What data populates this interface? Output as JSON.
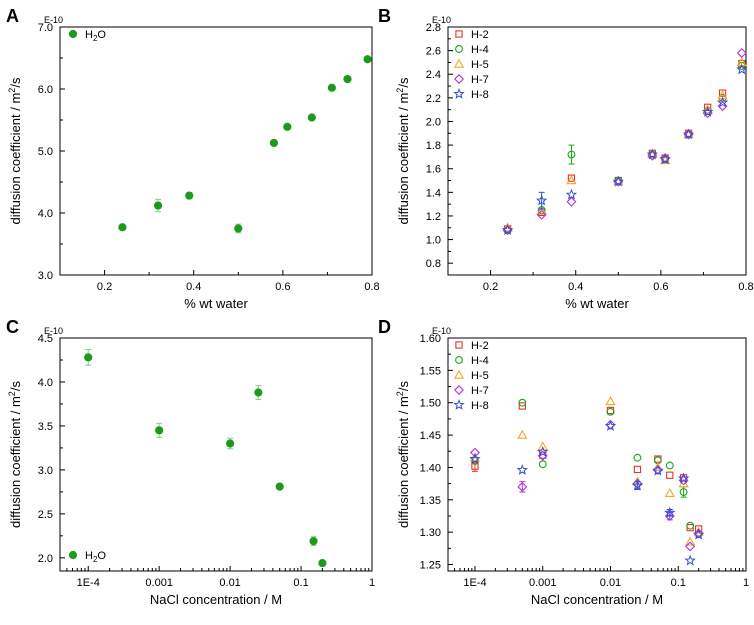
{
  "chart_data": [
    {
      "type": "scatter",
      "panel": "A",
      "xlabel": "% wt water",
      "ylabel": "diffusion coefficient / m²/s",
      "ylabel_main": "diffusion coefficient / m",
      "ylabel_sup": "2",
      "ylabel_tail": "/s",
      "multiplier": "E-10",
      "xscale": "linear",
      "xlim": [
        0.1,
        0.8
      ],
      "ylim": [
        3.0,
        7.0
      ],
      "xticks": [
        0.2,
        0.4,
        0.6,
        0.8
      ],
      "xtick_labels": [
        "0.2",
        "0.4",
        "0.6",
        "0.8"
      ],
      "yticks": [
        3.0,
        4.0,
        5.0,
        6.0,
        7.0
      ],
      "ytick_labels": [
        "3.0",
        "4.0",
        "5.0",
        "6.0",
        "7.0"
      ],
      "legend_position": "top-left",
      "series": [
        {
          "name": "H₂O",
          "name_main": "H",
          "name_sub": "2",
          "name_tail": "O",
          "marker": "filled-circle",
          "color": "#1c9a1c",
          "x": [
            0.24,
            0.32,
            0.39,
            0.5,
            0.58,
            0.61,
            0.665,
            0.71,
            0.745,
            0.79
          ],
          "y": [
            3.77,
            4.12,
            4.28,
            3.75,
            5.13,
            5.39,
            5.54,
            6.02,
            6.16,
            6.48
          ],
          "err": [
            0.03,
            0.1,
            0.05,
            0.07,
            0.03,
            0.03,
            0.03,
            0.03,
            0.03,
            0.04
          ]
        }
      ]
    },
    {
      "type": "scatter",
      "panel": "B",
      "xlabel": "% wt water",
      "ylabel": "diffusion coefficient / m²/s",
      "ylabel_main": "diffusion coefficient / m",
      "ylabel_sup": "2",
      "ylabel_tail": "/s",
      "multiplier": "E-10",
      "xscale": "linear",
      "xlim": [
        0.1,
        0.8
      ],
      "ylim": [
        0.7,
        2.8
      ],
      "xticks": [
        0.2,
        0.4,
        0.6,
        0.8
      ],
      "xtick_labels": [
        "0.2",
        "0.4",
        "0.6",
        "0.8"
      ],
      "yticks": [
        0.8,
        1.0,
        1.2,
        1.4,
        1.6,
        1.8,
        2.0,
        2.2,
        2.4,
        2.6,
        2.8
      ],
      "ytick_labels": [
        "0.8",
        "1.0",
        "1.2",
        "1.4",
        "1.6",
        "1.8",
        "2.0",
        "2.2",
        "2.4",
        "2.6",
        "2.8"
      ],
      "legend_position": "top-left",
      "series": [
        {
          "name": "H-2",
          "marker": "square",
          "color": "#e8312a",
          "x": [
            0.24,
            0.32,
            0.39,
            0.5,
            0.58,
            0.61,
            0.665,
            0.71,
            0.745,
            0.79
          ],
          "y": [
            1.09,
            1.23,
            1.52,
            1.5,
            1.73,
            1.69,
            1.9,
            2.12,
            2.24,
            2.49
          ],
          "err": []
        },
        {
          "name": "H-4",
          "marker": "circle",
          "color": "#1aa81a",
          "x": [
            0.24,
            0.32,
            0.39,
            0.5,
            0.58,
            0.61,
            0.665,
            0.71,
            0.745,
            0.79
          ],
          "y": [
            1.08,
            1.25,
            1.72,
            1.5,
            1.72,
            1.68,
            1.89,
            2.09,
            2.2,
            2.47
          ],
          "err": [
            0,
            0,
            0.08,
            0,
            0,
            0,
            0,
            0,
            0,
            0
          ]
        },
        {
          "name": "H-5",
          "marker": "triangle",
          "color": "#f5a623",
          "x": [
            0.24,
            0.32,
            0.39,
            0.5,
            0.58,
            0.61,
            0.665,
            0.71,
            0.745,
            0.79
          ],
          "y": [
            1.1,
            1.24,
            1.5,
            1.49,
            1.72,
            1.67,
            1.89,
            2.1,
            2.22,
            2.5
          ],
          "err": []
        },
        {
          "name": "H-7",
          "marker": "diamond",
          "color": "#b330e0",
          "x": [
            0.24,
            0.32,
            0.39,
            0.5,
            0.58,
            0.61,
            0.665,
            0.71,
            0.745,
            0.79
          ],
          "y": [
            1.08,
            1.21,
            1.32,
            1.49,
            1.71,
            1.69,
            1.89,
            2.07,
            2.13,
            2.58
          ],
          "err": []
        },
        {
          "name": "H-8",
          "marker": "star",
          "color": "#2f4fd8",
          "x": [
            0.24,
            0.32,
            0.39,
            0.5,
            0.58,
            0.61,
            0.665,
            0.71,
            0.745,
            0.79
          ],
          "y": [
            1.08,
            1.33,
            1.38,
            1.49,
            1.72,
            1.68,
            1.89,
            2.08,
            2.16,
            2.44
          ],
          "err": [
            0,
            0.07,
            0,
            0,
            0,
            0,
            0,
            0,
            0,
            0
          ]
        }
      ]
    },
    {
      "type": "scatter",
      "panel": "C",
      "xlabel": "NaCl concentration / M",
      "ylabel": "diffusion coefficient / m²/s",
      "ylabel_main": "diffusion coefficient / m",
      "ylabel_sup": "2",
      "ylabel_tail": "/s",
      "multiplier": "E-10",
      "xscale": "log",
      "xlim": [
        4e-05,
        1
      ],
      "ylim": [
        1.85,
        4.5
      ],
      "xticks": [
        0.0001,
        0.001,
        0.01,
        0.1,
        1
      ],
      "xtick_labels": [
        "1E-4",
        "0.001",
        "0.01",
        "0.1",
        "1"
      ],
      "yticks": [
        2.0,
        2.5,
        3.0,
        3.5,
        4.0,
        4.5
      ],
      "ytick_labels": [
        "2.0",
        "2.5",
        "3.0",
        "3.5",
        "4.0",
        "4.5"
      ],
      "legend_position": "bottom-left",
      "series": [
        {
          "name": "H₂O",
          "name_main": "H",
          "name_sub": "2",
          "name_tail": "O",
          "marker": "filled-circle",
          "color": "#1c9a1c",
          "x": [
            0.0001,
            0.001,
            0.01,
            0.025,
            0.05,
            0.15,
            0.2
          ],
          "y": [
            4.28,
            3.45,
            3.3,
            3.88,
            2.81,
            2.19,
            1.94
          ],
          "err": [
            0.09,
            0.08,
            0.06,
            0.08,
            0.03,
            0.05,
            0.02
          ]
        }
      ]
    },
    {
      "type": "scatter",
      "panel": "D",
      "xlabel": "NaCl concentration / M",
      "ylabel": "diffusion coefficient / m²/s",
      "ylabel_main": "diffusion coefficient / m",
      "ylabel_sup": "2",
      "ylabel_tail": "/s",
      "multiplier": "E-10",
      "xscale": "log",
      "xlim": [
        4e-05,
        1
      ],
      "ylim": [
        1.24,
        1.6
      ],
      "xticks": [
        0.0001,
        0.001,
        0.01,
        0.1,
        1
      ],
      "xtick_labels": [
        "1E-4",
        "0.001",
        "0.01",
        "0.1",
        "1"
      ],
      "yticks": [
        1.25,
        1.3,
        1.35,
        1.4,
        1.45,
        1.5,
        1.55,
        1.6
      ],
      "ytick_labels": [
        "1.25",
        "1.30",
        "1.35",
        "1.40",
        "1.45",
        "1.50",
        "1.55",
        "1.60"
      ],
      "legend_position": "top-left",
      "series": [
        {
          "name": "H-2",
          "marker": "square",
          "color": "#e8312a",
          "x": [
            0.0001,
            0.0005,
            0.001,
            0.01,
            0.025,
            0.05,
            0.075,
            0.12,
            0.15,
            0.2
          ],
          "y": [
            1.402,
            1.495,
            1.419,
            1.488,
            1.397,
            1.413,
            1.388,
            1.384,
            1.307,
            1.305
          ],
          "err": [
            0.008,
            0,
            0,
            0,
            0,
            0,
            0,
            0,
            0,
            0
          ]
        },
        {
          "name": "H-4",
          "marker": "circle",
          "color": "#1aa81a",
          "x": [
            0.0001,
            0.0005,
            0.001,
            0.01,
            0.025,
            0.05,
            0.075,
            0.12,
            0.15,
            0.2
          ],
          "y": [
            1.41,
            1.5,
            1.405,
            1.486,
            1.415,
            1.411,
            1.403,
            1.362,
            1.31,
            1.297
          ],
          "err": [
            0,
            0,
            0,
            0,
            0,
            0,
            0,
            0.008,
            0,
            0
          ]
        },
        {
          "name": "H-5",
          "marker": "triangle",
          "color": "#f5a623",
          "x": [
            0.0001,
            0.0005,
            0.001,
            0.01,
            0.025,
            0.05,
            0.075,
            0.12,
            0.15,
            0.2
          ],
          "y": [
            1.415,
            1.45,
            1.432,
            1.502,
            1.378,
            1.4,
            1.36,
            1.375,
            1.285,
            1.3
          ],
          "err": []
        },
        {
          "name": "H-7",
          "marker": "diamond",
          "color": "#b330e0",
          "x": [
            0.0001,
            0.0005,
            0.001,
            0.01,
            0.025,
            0.05,
            0.075,
            0.12,
            0.15,
            0.2
          ],
          "y": [
            1.423,
            1.37,
            1.418,
            1.466,
            1.375,
            1.396,
            1.325,
            1.38,
            1.278,
            1.298
          ],
          "err": [
            0,
            0.008,
            0,
            0,
            0,
            0,
            0.006,
            0,
            0,
            0
          ]
        },
        {
          "name": "H-8",
          "marker": "star",
          "color": "#2f4fd8",
          "x": [
            0.0001,
            0.0005,
            0.001,
            0.01,
            0.025,
            0.05,
            0.075,
            0.12,
            0.15,
            0.2
          ],
          "y": [
            1.413,
            1.396,
            1.424,
            1.464,
            1.372,
            1.395,
            1.33,
            1.383,
            1.256,
            1.296
          ],
          "err": [
            0,
            0,
            0,
            0,
            0.006,
            0,
            0.005,
            0,
            0,
            0
          ]
        }
      ]
    }
  ]
}
